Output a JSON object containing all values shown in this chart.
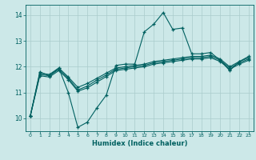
{
  "xlabel": "Humidex (Indice chaleur)",
  "bg_color": "#cce8e8",
  "grid_color": "#aacccc",
  "line_color": "#006060",
  "xlim": [
    -0.5,
    23.5
  ],
  "ylim": [
    9.5,
    14.4
  ],
  "yticks": [
    10,
    11,
    12,
    13,
    14
  ],
  "xticks": [
    0,
    1,
    2,
    3,
    4,
    5,
    6,
    7,
    8,
    9,
    10,
    11,
    12,
    13,
    14,
    15,
    16,
    17,
    18,
    19,
    20,
    21,
    22,
    23
  ],
  "series1_y": [
    10.1,
    11.8,
    11.65,
    11.95,
    11.0,
    9.65,
    9.85,
    10.4,
    10.9,
    12.05,
    12.1,
    12.1,
    13.35,
    13.65,
    14.1,
    13.45,
    13.5,
    12.5,
    12.5,
    12.55,
    12.25,
    11.85,
    12.2,
    12.4
  ],
  "series2_y": [
    10.1,
    11.75,
    11.7,
    11.95,
    11.6,
    11.2,
    11.35,
    11.55,
    11.75,
    11.95,
    12.0,
    12.05,
    12.1,
    12.2,
    12.25,
    12.3,
    12.35,
    12.4,
    12.4,
    12.45,
    12.3,
    12.0,
    12.2,
    12.35
  ],
  "series3_y": [
    10.1,
    11.7,
    11.65,
    11.9,
    11.55,
    11.1,
    11.25,
    11.48,
    11.68,
    11.9,
    11.95,
    12.0,
    12.05,
    12.15,
    12.2,
    12.25,
    12.3,
    12.35,
    12.35,
    12.4,
    12.25,
    11.95,
    12.15,
    12.3
  ],
  "series4_y": [
    10.1,
    11.65,
    11.6,
    11.85,
    11.5,
    11.05,
    11.18,
    11.4,
    11.62,
    11.85,
    11.9,
    11.95,
    12.0,
    12.1,
    12.15,
    12.2,
    12.25,
    12.3,
    12.3,
    12.35,
    12.2,
    11.9,
    12.1,
    12.25
  ]
}
